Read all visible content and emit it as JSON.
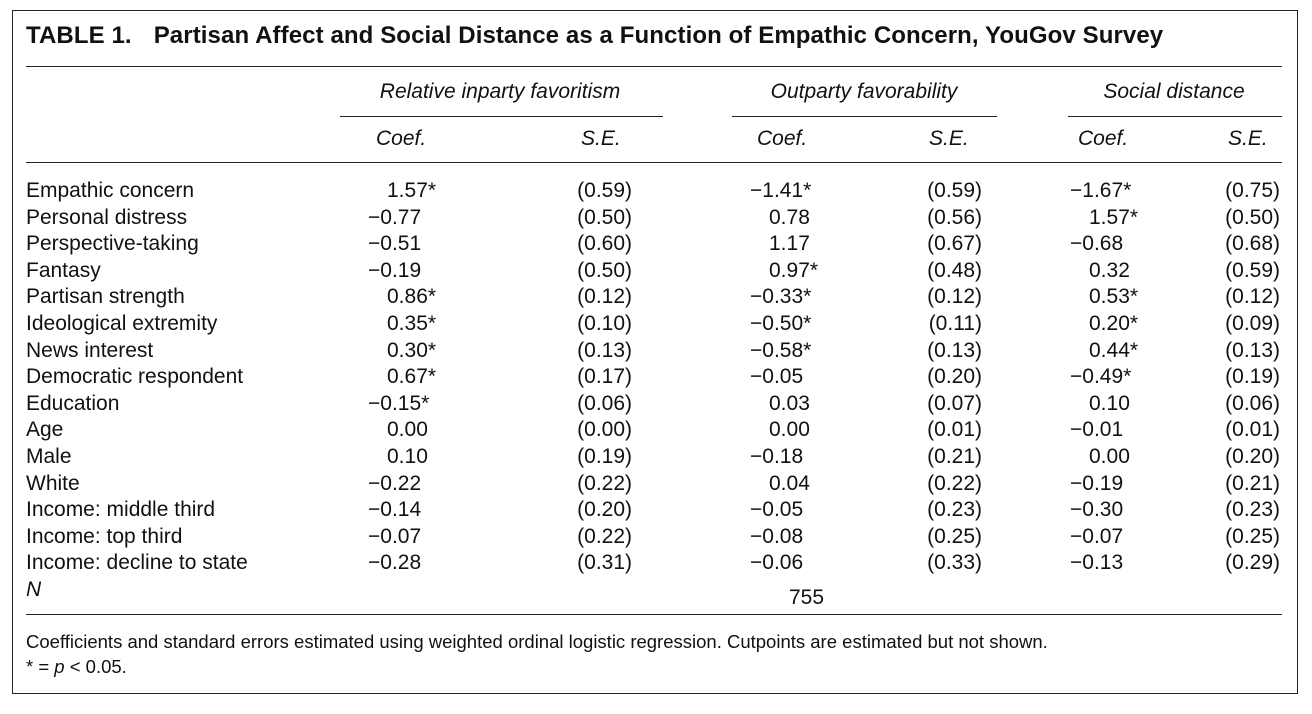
{
  "table": {
    "number": "TABLE 1.",
    "title": "Partisan Affect and Social Distance as a Function of Empathic Concern, YouGov Survey",
    "groups": [
      "Relative inparty favoritism",
      "Outparty favorability",
      "Social distance"
    ],
    "coef_label": "Coef.",
    "se_label": "S.E.",
    "rows": [
      {
        "label": "Empathic concern",
        "c1": "1.57*",
        "s1": "(0.59)",
        "c2": "−1.41*",
        "s2": "(0.59)",
        "c3": "−1.67*",
        "s3": "(0.75)"
      },
      {
        "label": "Personal distress",
        "c1": "−0.77",
        "s1": "(0.50)",
        "c2": "0.78",
        "s2": "(0.56)",
        "c3": "1.57*",
        "s3": "(0.50)"
      },
      {
        "label": "Perspective-taking",
        "c1": "−0.51",
        "s1": "(0.60)",
        "c2": "1.17",
        "s2": "(0.67)",
        "c3": "−0.68",
        "s3": "(0.68)"
      },
      {
        "label": "Fantasy",
        "c1": "−0.19",
        "s1": "(0.50)",
        "c2": "0.97*",
        "s2": "(0.48)",
        "c3": "0.32",
        "s3": "(0.59)"
      },
      {
        "label": "Partisan strength",
        "c1": "0.86*",
        "s1": "(0.12)",
        "c2": "−0.33*",
        "s2": "(0.12)",
        "c3": "0.53*",
        "s3": "(0.12)"
      },
      {
        "label": "Ideological extremity",
        "c1": "0.35*",
        "s1": "(0.10)",
        "c2": "−0.50*",
        "s2": "(0.11)",
        "c3": "0.20*",
        "s3": "(0.09)"
      },
      {
        "label": "News interest",
        "c1": "0.30*",
        "s1": "(0.13)",
        "c2": "−0.58*",
        "s2": "(0.13)",
        "c3": "0.44*",
        "s3": "(0.13)"
      },
      {
        "label": "Democratic respondent",
        "c1": "0.67*",
        "s1": "(0.17)",
        "c2": "−0.05",
        "s2": "(0.20)",
        "c3": "−0.49*",
        "s3": "(0.19)"
      },
      {
        "label": "Education",
        "c1": "−0.15*",
        "s1": "(0.06)",
        "c2": "0.03",
        "s2": "(0.07)",
        "c3": "0.10",
        "s3": "(0.06)"
      },
      {
        "label": "Age",
        "c1": "0.00",
        "s1": "(0.00)",
        "c2": "0.00",
        "s2": "(0.01)",
        "c3": "−0.01",
        "s3": "(0.01)"
      },
      {
        "label": "Male",
        "c1": "0.10",
        "s1": "(0.19)",
        "c2": "−0.18",
        "s2": "(0.21)",
        "c3": "0.00",
        "s3": "(0.20)"
      },
      {
        "label": "White",
        "c1": "−0.22",
        "s1": "(0.22)",
        "c2": "0.04",
        "s2": "(0.22)",
        "c3": "−0.19",
        "s3": "(0.21)"
      },
      {
        "label": "Income: middle third",
        "c1": "−0.14",
        "s1": "(0.20)",
        "c2": "−0.05",
        "s2": "(0.23)",
        "c3": "−0.30",
        "s3": "(0.23)"
      },
      {
        "label": "Income: top third",
        "c1": "−0.07",
        "s1": "(0.22)",
        "c2": "−0.08",
        "s2": "(0.25)",
        "c3": "−0.07",
        "s3": "(0.25)"
      },
      {
        "label": "Income: decline to state",
        "c1": "−0.28",
        "s1": "(0.31)",
        "c2": "−0.06",
        "s2": "(0.33)",
        "c3": "−0.13",
        "s3": "(0.29)"
      }
    ],
    "n_label": "N",
    "n_value": "755",
    "note": "Coefficients and standard errors estimated using weighted ordinal logistic regression. Cutpoints are estimated but not shown.",
    "sig_star": "* = ",
    "sig_p": "p",
    "sig_rest": " < 0.05."
  }
}
